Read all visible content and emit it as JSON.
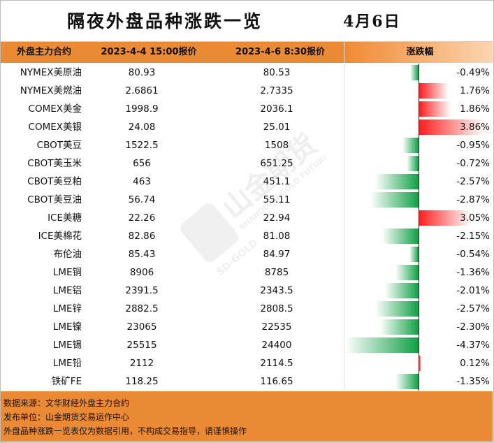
{
  "title": "隔夜外盘品种涨跌一览",
  "date": "4月6日",
  "header": {
    "col_name": "外盘主力合约",
    "col_price1": "2023-4-4 15:00报价",
    "col_price2": "2023-4-6 8:30报价",
    "col_change": "涨跌幅"
  },
  "rows": [
    {
      "name": "NYMEX美原油",
      "p1": "80.93",
      "p2": "80.53",
      "pct": "-0.49%",
      "value": -0.49
    },
    {
      "name": "NYMEX美燃油",
      "p1": "2.6861",
      "p2": "2.7335",
      "pct": "1.76%",
      "value": 1.76
    },
    {
      "name": "COMEX美金",
      "p1": "1998.9",
      "p2": "2036.1",
      "pct": "1.86%",
      "value": 1.86
    },
    {
      "name": "COMEX美银",
      "p1": "24.08",
      "p2": "25.01",
      "pct": "3.86%",
      "value": 3.86
    },
    {
      "name": "CBOT美豆",
      "p1": "1522.5",
      "p2": "1508",
      "pct": "-0.95%",
      "value": -0.95
    },
    {
      "name": "CBOT美玉米",
      "p1": "656",
      "p2": "651.25",
      "pct": "-0.72%",
      "value": -0.72
    },
    {
      "name": "CBOT美豆粕",
      "p1": "463",
      "p2": "451.1",
      "pct": "-2.57%",
      "value": -2.57
    },
    {
      "name": "CBOT美豆油",
      "p1": "56.74",
      "p2": "55.11",
      "pct": "-2.87%",
      "value": -2.87
    },
    {
      "name": "ICE美糖",
      "p1": "22.26",
      "p2": "22.94",
      "pct": "3.05%",
      "value": 3.05
    },
    {
      "name": "ICE美棉花",
      "p1": "82.86",
      "p2": "81.08",
      "pct": "-2.15%",
      "value": -2.15
    },
    {
      "name": "布伦油",
      "p1": "85.43",
      "p2": "84.97",
      "pct": "-0.54%",
      "value": -0.54
    },
    {
      "name": "LME铜",
      "p1": "8906",
      "p2": "8785",
      "pct": "-1.36%",
      "value": -1.36
    },
    {
      "name": "LME铝",
      "p1": "2391.5",
      "p2": "2343.5",
      "pct": "-2.01%",
      "value": -2.01
    },
    {
      "name": "LME锌",
      "p1": "2882.5",
      "p2": "2808.5",
      "pct": "-2.57%",
      "value": -2.57
    },
    {
      "name": "LME镍",
      "p1": "23065",
      "p2": "22535",
      "pct": "-2.30%",
      "value": -2.3
    },
    {
      "name": "LME锡",
      "p1": "25515",
      "p2": "24400",
      "pct": "-4.37%",
      "value": -4.37
    },
    {
      "name": "LME铅",
      "p1": "2112",
      "p2": "2114.5",
      "pct": "0.12%",
      "value": 0.12
    },
    {
      "name": "铁矿FE",
      "p1": "118.25",
      "p2": "116.65",
      "pct": "-1.35%",
      "value": -1.35
    }
  ],
  "footer": {
    "source": "数据来源：文华财经外盘主力合约",
    "publisher": "发布单位：山金期货交易运作中心",
    "disclaimer": "外盘品种涨跌一览表仅为数据引用，不构成交易指导，请谨慎操作"
  },
  "watermark": {
    "brand_cn": "山金期货",
    "brand_en": "SHANDONG GOLD FUTURES",
    "logo_text": "SD-GOLD"
  },
  "colors": {
    "header": "#ea8a35",
    "up": "#ff1e1e",
    "down": "#10a046"
  }
}
